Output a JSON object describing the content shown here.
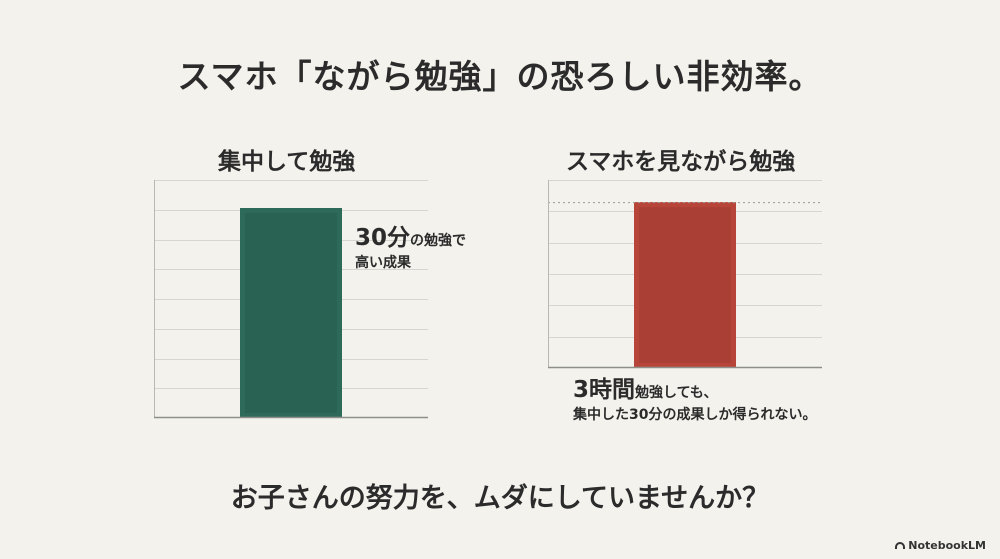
{
  "title": "スマホ「ながら勉強」の恐ろしい非効率。",
  "footer": "お子さんの努力を、ムダにしていませんか？",
  "brand": "NotebookLM",
  "colors": {
    "green": "#2d6a5a",
    "red": "#b8453a",
    "background": "#f3f2ed"
  },
  "chart_data": [
    {
      "type": "bar",
      "title": "集中して勉強",
      "categories": [
        ""
      ],
      "values": [
        30
      ],
      "ylim": [
        0,
        34
      ],
      "grid": true,
      "color": "#2d6a5a",
      "annotation": {
        "big": "30分",
        "small": "の勉強で",
        "line2": "高い成果"
      }
    },
    {
      "type": "bar",
      "title": "スマホを見ながら勉強",
      "categories": [
        ""
      ],
      "values": [
        30
      ],
      "ylim": [
        0,
        34
      ],
      "grid": true,
      "color": "#b8453a",
      "annotation": {
        "big": "3時間",
        "small": "勉強しても、",
        "line2": "集中した30分の成果しか得られない。"
      }
    }
  ]
}
